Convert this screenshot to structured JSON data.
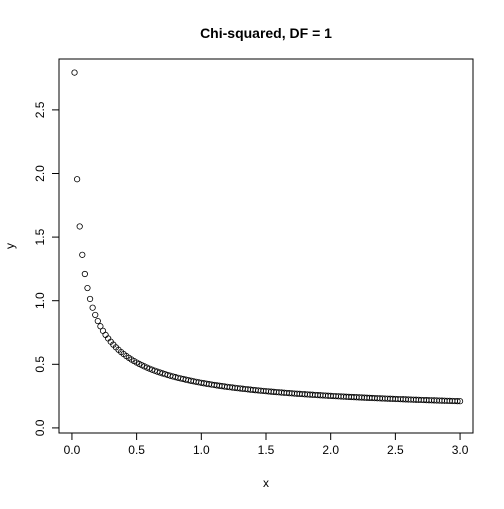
{
  "chart_data": {
    "type": "scatter",
    "title": "Chi-squared, DF = 1",
    "xlabel": "x",
    "ylabel": "y",
    "xlim": [
      -0.1,
      3.1
    ],
    "ylim": [
      -0.04,
      2.9
    ],
    "x_ticks": [
      0.0,
      0.5,
      1.0,
      1.5,
      2.0,
      2.5,
      3.0
    ],
    "x_tick_labels": [
      "0.0",
      "0.5",
      "1.0",
      "1.5",
      "2.0",
      "2.5",
      "3.0"
    ],
    "y_ticks": [
      0.0,
      0.5,
      1.0,
      1.5,
      2.0,
      2.5
    ],
    "y_tick_labels": [
      "0.0",
      "0.5",
      "1.0",
      "1.5",
      "2.0",
      "2.5"
    ],
    "grid": false,
    "legend": "none",
    "point_style": "open-circle",
    "color": "#000000",
    "series": [
      {
        "x": [
          0.02,
          0.04,
          0.06,
          0.08,
          0.1,
          0.12,
          0.14,
          0.16,
          0.18,
          0.2,
          0.22,
          0.24,
          0.26,
          0.28,
          0.3,
          0.32,
          0.34,
          0.36,
          0.38,
          0.4,
          0.42,
          0.44,
          0.46,
          0.48,
          0.5,
          0.52,
          0.54,
          0.56,
          0.58,
          0.6,
          0.62,
          0.64,
          0.66,
          0.68,
          0.7,
          0.72,
          0.74,
          0.76,
          0.78,
          0.8,
          0.82,
          0.84,
          0.86,
          0.88,
          0.9,
          0.92,
          0.94,
          0.96,
          0.98,
          1.0,
          1.02,
          1.04,
          1.06,
          1.08,
          1.1,
          1.12,
          1.14,
          1.16,
          1.18,
          1.2,
          1.22,
          1.24,
          1.26,
          1.28,
          1.3,
          1.32,
          1.34,
          1.36,
          1.38,
          1.4,
          1.42,
          1.44,
          1.46,
          1.48,
          1.5,
          1.52,
          1.54,
          1.56,
          1.58,
          1.6,
          1.62,
          1.64,
          1.66,
          1.68,
          1.7,
          1.72,
          1.74,
          1.76,
          1.78,
          1.8,
          1.82,
          1.84,
          1.86,
          1.88,
          1.9,
          1.92,
          1.94,
          1.96,
          1.98,
          2.0,
          2.02,
          2.04,
          2.06,
          2.08,
          2.1,
          2.12,
          2.14,
          2.16,
          2.18,
          2.2,
          2.22,
          2.24,
          2.26,
          2.28,
          2.3,
          2.32,
          2.34,
          2.36,
          2.38,
          2.4,
          2.42,
          2.44,
          2.46,
          2.48,
          2.5,
          2.52,
          2.54,
          2.56,
          2.58,
          2.6,
          2.62,
          2.64,
          2.66,
          2.68,
          2.7,
          2.72,
          2.74,
          2.76,
          2.78,
          2.8,
          2.82,
          2.84,
          2.86,
          2.88,
          2.9,
          2.92,
          2.94,
          2.96,
          2.98,
          3.0
        ],
        "y": [
          2.793,
          1.955,
          1.5835,
          1.3605,
          1.2099,
          1.0994,
          1.0136,
          0.945,
          0.8881,
          0.84,
          0.799,
          0.763,
          0.7313,
          0.7032,
          0.6775,
          0.6547,
          0.6334,
          0.6143,
          0.5964,
          0.5803,
          0.5649,
          0.5511,
          0.5377,
          0.5256,
          0.5139,
          0.5031,
          0.4928,
          0.4835,
          0.4742,
          0.4657,
          0.4575,
          0.4498,
          0.4424,
          0.4354,
          0.4287,
          0.4223,
          0.4161,
          0.4103,
          0.4046,
          0.3991,
          0.394,
          0.389,
          0.3842,
          0.3795,
          0.3749,
          0.3707,
          0.3664,
          0.3624,
          0.3584,
          0.3547,
          0.3511,
          0.3474,
          0.344,
          0.3407,
          0.3374,
          0.3344,
          0.3313,
          0.3284,
          0.3254,
          0.3228,
          0.32,
          0.3174,
          0.3149,
          0.3124,
          0.31,
          0.3077,
          0.3053,
          0.3031,
          0.301,
          0.2987,
          0.2966,
          0.2947,
          0.2926,
          0.2907,
          0.2887,
          0.2869,
          0.2851,
          0.2832,
          0.2815,
          0.2798,
          0.2781,
          0.2765,
          0.2748,
          0.2733,
          0.2718,
          0.2702,
          0.2687,
          0.2673,
          0.2659,
          0.2644,
          0.2631,
          0.2617,
          0.2604,
          0.2591,
          0.2578,
          0.2565,
          0.2553,
          0.2541,
          0.2529,
          0.2517,
          0.2505,
          0.2494,
          0.2483,
          0.2472,
          0.2461,
          0.245,
          0.244,
          0.243,
          0.2419,
          0.2409,
          0.2399,
          0.239,
          0.238,
          0.2371,
          0.2361,
          0.2352,
          0.2343,
          0.2334,
          0.2325,
          0.2316,
          0.2308,
          0.2299,
          0.2291,
          0.2283,
          0.2275,
          0.2267,
          0.2259,
          0.2251,
          0.2243,
          0.2235,
          0.2228,
          0.222,
          0.2213,
          0.2206,
          0.2198,
          0.2191,
          0.2184,
          0.2177,
          0.217,
          0.2164,
          0.2157,
          0.215,
          0.2143,
          0.2137,
          0.213,
          0.2124,
          0.2118,
          0.2112,
          0.2105,
          0.2099
        ]
      }
    ]
  }
}
